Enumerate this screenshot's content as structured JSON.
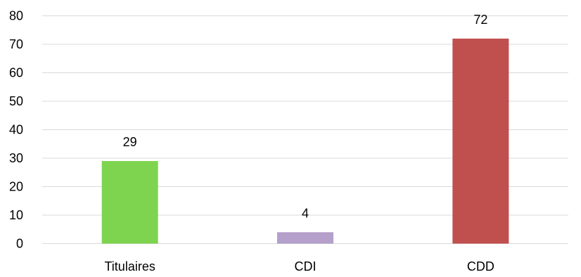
{
  "chart_data": {
    "type": "bar",
    "categories": [
      "Titulaires",
      "CDI",
      "CDD"
    ],
    "values": [
      29,
      4,
      72
    ],
    "data_labels": [
      "29",
      "4",
      "72"
    ],
    "colors": [
      "#7ed44f",
      "#b4a0cb",
      "#c0504d"
    ],
    "ylim": [
      0,
      80
    ],
    "yticks": [
      "0",
      "10",
      "20",
      "30",
      "40",
      "50",
      "60",
      "70",
      "80"
    ],
    "grid": true,
    "legend": "none"
  }
}
